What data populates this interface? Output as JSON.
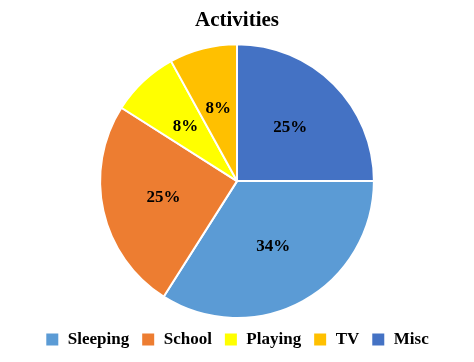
{
  "chart_data": {
    "type": "pie",
    "title": "Activities",
    "categories": [
      "Sleeping",
      "School",
      "Playing",
      "TV",
      "Misc"
    ],
    "values": [
      34,
      25,
      8,
      8,
      25
    ],
    "value_labels": [
      "34%",
      "25%",
      "8%",
      "8%",
      "25%"
    ],
    "colors": [
      "#5b9bd5",
      "#ed7d31",
      "#ffff00",
      "#ffc000",
      "#4472c4"
    ],
    "data_labels": true,
    "legend": "bottom"
  }
}
